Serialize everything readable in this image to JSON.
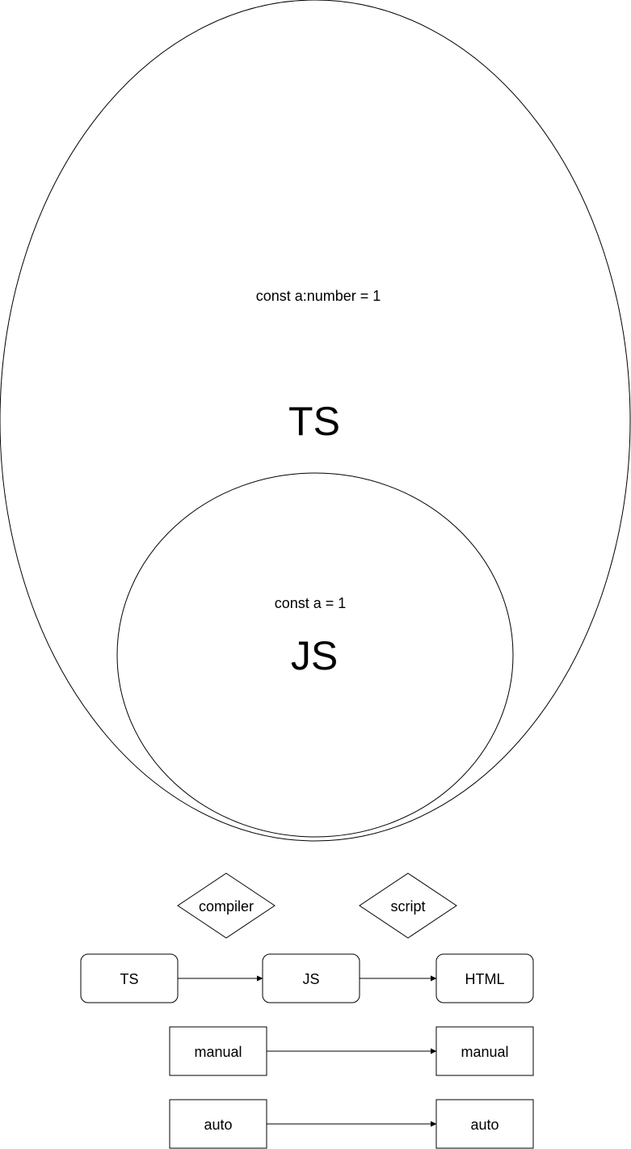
{
  "venn": {
    "outer": {
      "label": "TS",
      "code": "const a:number = 1"
    },
    "inner": {
      "label": "JS",
      "code": "const a = 1"
    }
  },
  "flow": {
    "decisions": {
      "compiler": "compiler",
      "script": "script"
    },
    "nodes": {
      "ts": "TS",
      "js": "JS",
      "html": "HTML",
      "manual_left": "manual",
      "manual_right": "manual",
      "auto_left": "auto",
      "auto_right": "auto"
    }
  }
}
